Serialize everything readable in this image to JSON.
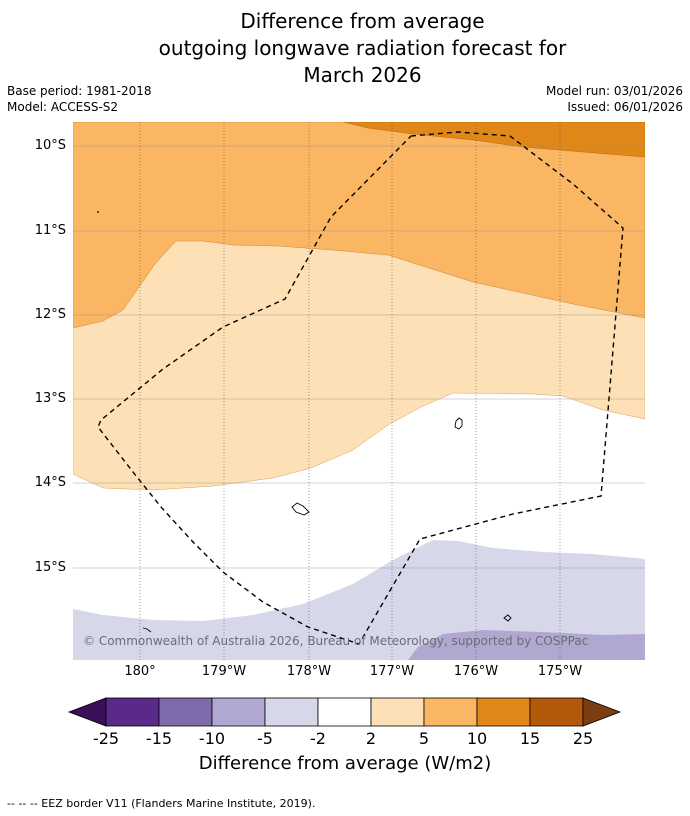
{
  "title_lines": [
    "Difference from average",
    "outgoing longwave radiation forecast for",
    "March 2026"
  ],
  "meta": {
    "base_period": "Base period: 1981-2018",
    "model": "Model: ACCESS-S2",
    "model_run": "Model run: 03/01/2026",
    "issued": "Issued: 06/01/2026"
  },
  "map": {
    "lat_labels": [
      "10°S",
      "11°S",
      "12°S",
      "13°S",
      "14°S",
      "15°S"
    ],
    "lon_labels": [
      "180°",
      "179°W",
      "178°W",
      "177°W",
      "176°W",
      "175°W"
    ],
    "copyright": "© Commonwealth of Australia 2026, Bureau of Meteorology, supported by COSPPac"
  },
  "colorbar": {
    "ticks": [
      "-25",
      "-15",
      "-10",
      "-5",
      "-2",
      "2",
      "5",
      "10",
      "15",
      "25"
    ],
    "colors": [
      "#3b0f5a",
      "#5a2a8a",
      "#7f6aab",
      "#b0a8d0",
      "#d7d7ea",
      "#ffffff",
      "#fde0b5",
      "#fbb664",
      "#e08718",
      "#b4590a",
      "#7a3e10"
    ],
    "label": "Difference from average (W/m2)"
  },
  "footnote": "--  --  -- EEZ border V11 (Flanders Marine Institute, 2019)."
}
